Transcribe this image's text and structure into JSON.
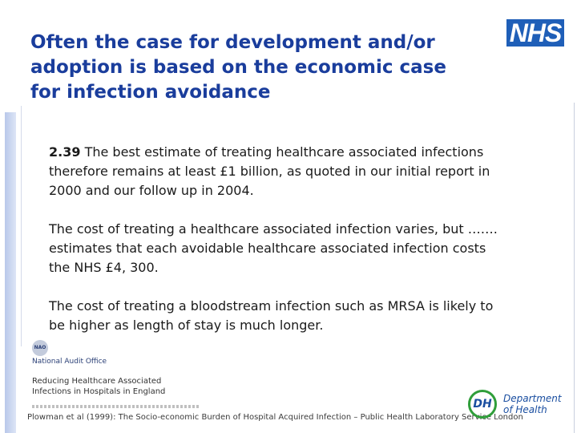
{
  "title": "Often the case for development and/or adoption is based on the economic case for infection avoidance",
  "logos": {
    "nhs": "NHS",
    "dh_mark": "DH",
    "dh_line1": "Department",
    "dh_line2": "of Health",
    "nao_seal": "NAO",
    "nao_name": "National Audit Office"
  },
  "paragraphs": {
    "p1_number": "2.39",
    "p1_text": " The best estimate of treating healthcare associated infections therefore remains at least £1 billion, as quoted in our initial report in 2000 and our follow up in 2004.",
    "p2_text": "The cost of treating a healthcare associated infection varies, but ……. estimates that each avoidable healthcare associated infection costs the NHS £4, 300.",
    "p3_text": "The cost of treating a bloodstream infection such as MRSA is likely to be higher as length of stay is much longer."
  },
  "report": {
    "title_line1": "Reducing Healthcare Associated",
    "title_line2": "Infections in Hospitals in England"
  },
  "citation": "Plowman et al (1999): The Socio-economic Burden of Hospital Acquired Infection – Public Health Laboratory Service London",
  "colors": {
    "title": "#1a3d9c",
    "nhs_blue": "#1f5fb8",
    "dh_green": "#2f9e3a",
    "dh_blue": "#1a4ea0"
  }
}
